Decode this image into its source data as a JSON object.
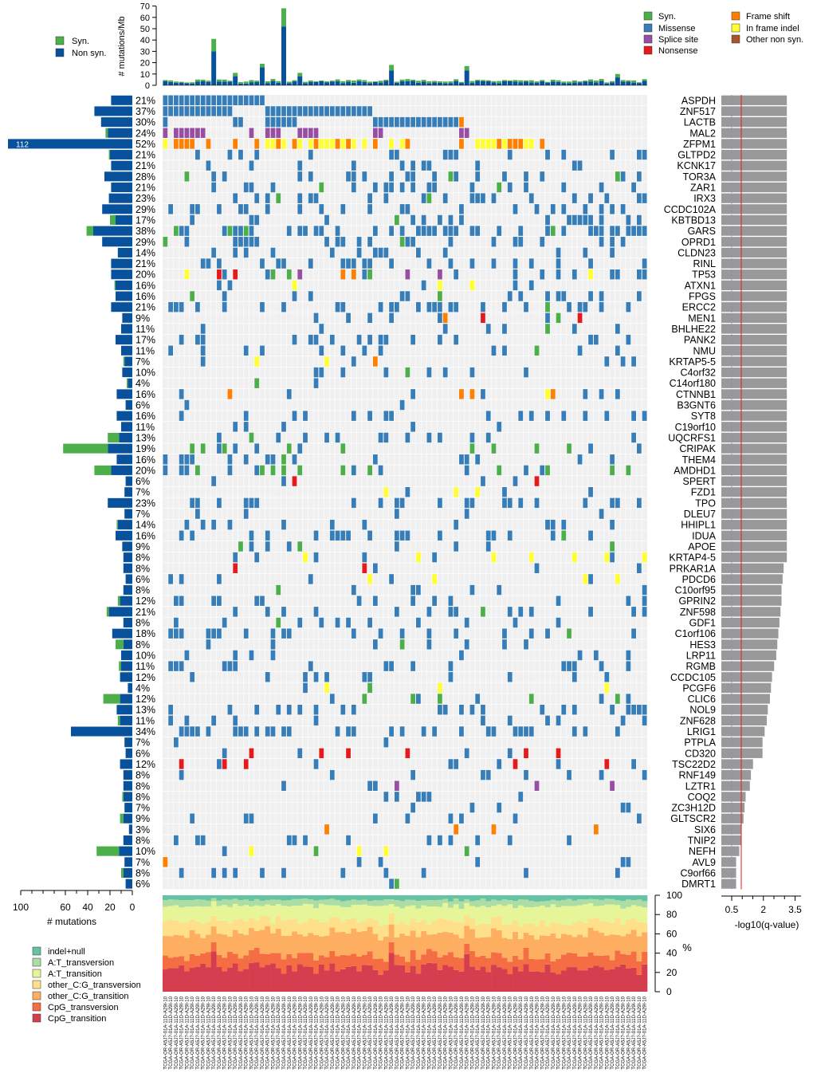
{
  "chart_data": {
    "type": "heatmap",
    "title": "",
    "top_bar": {
      "ylabel": "# mutations/Mb",
      "yticks": [
        0,
        10,
        20,
        30,
        40,
        50,
        60,
        70
      ],
      "ylim": [
        0,
        70
      ],
      "legend": [
        "Syn.",
        "Non syn."
      ],
      "peaks": [
        {
          "sample": 9,
          "nonsyn": 30,
          "syn": 11
        },
        {
          "sample": 13,
          "nonsyn": 8,
          "syn": 3
        },
        {
          "sample": 18,
          "nonsyn": 16,
          "syn": 3
        },
        {
          "sample": 22,
          "nonsyn": 52,
          "syn": 16
        },
        {
          "sample": 25,
          "nonsyn": 8,
          "syn": 3
        },
        {
          "sample": 42,
          "nonsyn": 13,
          "syn": 5
        },
        {
          "sample": 56,
          "nonsyn": 13,
          "syn": 4
        },
        {
          "sample": 84,
          "nonsyn": 7,
          "syn": 3
        }
      ]
    },
    "mutation_legend": [
      "Syn.",
      "Missense",
      "Splice site",
      "Nonsense",
      "Frame shift",
      "In frame indel",
      "Other non syn."
    ],
    "samples_count": 90,
    "genes": [
      "ASPDH",
      "ZNF517",
      "LACTB",
      "MAL2",
      "ZFPM1",
      "GLTPD2",
      "KCNK17",
      "TOR3A",
      "ZAR1",
      "IRX3",
      "CCDC102A",
      "KBTBD13",
      "GARS",
      "OPRD1",
      "CLDN23",
      "RINL",
      "TP53",
      "ATXN1",
      "FPGS",
      "ERCC2",
      "MEN1",
      "BHLHE22",
      "PANK2",
      "NMU",
      "KRTAP5-5",
      "C4orf32",
      "C14orf180",
      "CTNNB1",
      "B3GNT6",
      "SYT8",
      "C19orf10",
      "UQCRFS1",
      "CRIPAK",
      "THEM4",
      "AMDHD1",
      "SPERT",
      "FZD1",
      "TPO",
      "DLEU7",
      "HHIPL1",
      "IDUA",
      "APOE",
      "KRTAP4-5",
      "PRKAR1A",
      "PDCD6",
      "C10orf95",
      "GPRIN2",
      "ZNF598",
      "GDF1",
      "C1orf106",
      "HES3",
      "LRP11",
      "RGMB",
      "CCDC105",
      "PCGF6",
      "CLIC6",
      "NOL9",
      "ZNF628",
      "LRIG1",
      "PTPLA",
      "CD320",
      "TSC22D2",
      "RNF149",
      "LZTR1",
      "COQ2",
      "ZC3H12D",
      "GLTSCR2",
      "SIX6",
      "TNIP2",
      "NEFH",
      "AVL9",
      "C9orf66",
      "DMRT1"
    ],
    "percents": [
      "21%",
      "37%",
      "30%",
      "24%",
      "52%",
      "21%",
      "21%",
      "28%",
      "21%",
      "23%",
      "29%",
      "17%",
      "38%",
      "29%",
      "14%",
      "21%",
      "20%",
      "16%",
      "16%",
      "21%",
      "9%",
      "11%",
      "17%",
      "11%",
      "7%",
      "10%",
      "4%",
      "16%",
      "6%",
      "16%",
      "11%",
      "13%",
      "19%",
      "16%",
      "20%",
      "6%",
      "7%",
      "23%",
      "7%",
      "14%",
      "16%",
      "9%",
      "8%",
      "8%",
      "6%",
      "8%",
      "12%",
      "21%",
      "8%",
      "18%",
      "8%",
      "10%",
      "11%",
      "12%",
      "4%",
      "12%",
      "13%",
      "11%",
      "34%",
      "7%",
      "6%",
      "12%",
      "8%",
      "8%",
      "8%",
      "7%",
      "9%",
      "3%",
      "8%",
      "10%",
      "7%",
      "8%",
      "6%"
    ],
    "left_counts": {
      "nonsyn": [
        19,
        34,
        28,
        22,
        112,
        20,
        19,
        25,
        19,
        21,
        27,
        15,
        35,
        27,
        13,
        19,
        19,
        15,
        15,
        19,
        9,
        10,
        15,
        10,
        7,
        9,
        4,
        14,
        6,
        14,
        10,
        12,
        22,
        14,
        19,
        6,
        7,
        22,
        7,
        13,
        15,
        9,
        8,
        8,
        6,
        8,
        11,
        21,
        8,
        18,
        8,
        10,
        10,
        11,
        4,
        11,
        14,
        11,
        55,
        7,
        6,
        11,
        8,
        8,
        8,
        7,
        8,
        3,
        8,
        12,
        7,
        8,
        6
      ],
      "syn": [
        0,
        0,
        0,
        2,
        0,
        1,
        0,
        0,
        0,
        0,
        0,
        5,
        6,
        0,
        0,
        0,
        0,
        1,
        0,
        0,
        0,
        0,
        0,
        0,
        1,
        0,
        1,
        0,
        0,
        0,
        0,
        10,
        40,
        0,
        15,
        0,
        0,
        0,
        0,
        1,
        0,
        0,
        0,
        0,
        0,
        0,
        2,
        2,
        0,
        0,
        7,
        0,
        2,
        0,
        0,
        15,
        0,
        2,
        0,
        0,
        0,
        0,
        0,
        0,
        1,
        0,
        3,
        0,
        0,
        20,
        0,
        2,
        0
      ],
      "xlabel": "# mutations",
      "xticks": [
        100,
        60,
        40,
        20,
        0
      ],
      "bar_label": "112"
    },
    "qvalue": {
      "xlabel": "-log10(q-value)",
      "xticks": [
        0.5,
        2.0,
        3.5
      ],
      "values": [
        3.1,
        3.1,
        3.1,
        3.1,
        3.1,
        3.1,
        3.1,
        3.1,
        3.1,
        3.1,
        3.1,
        3.1,
        3.1,
        3.1,
        3.1,
        3.1,
        3.1,
        3.1,
        3.1,
        3.1,
        3.1,
        3.1,
        3.1,
        3.1,
        3.1,
        3.1,
        3.1,
        3.1,
        3.1,
        3.1,
        3.1,
        3.1,
        3.1,
        3.1,
        3.1,
        3.1,
        3.1,
        3.1,
        3.1,
        3.1,
        3.1,
        3.1,
        3.1,
        2.95,
        2.9,
        2.85,
        2.85,
        2.8,
        2.75,
        2.7,
        2.65,
        2.6,
        2.5,
        2.4,
        2.35,
        2.3,
        2.2,
        2.15,
        2.05,
        1.95,
        1.95,
        1.5,
        1.4,
        1.35,
        1.15,
        1.1,
        1.05,
        0.95,
        0.95,
        0.85,
        0.7,
        0.7,
        0.7
      ]
    },
    "spectrum": {
      "ylabel": "%",
      "yticks": [
        0,
        20,
        40,
        60,
        80,
        100
      ],
      "categories": [
        "indel+null",
        "A:T_transversion",
        "A:T_transition",
        "other_C:G_transversion",
        "other_C:G_transition",
        "CpG_transversion",
        "CpG_transition"
      ]
    },
    "sample_label": "TCGA-OR-A5J?-01A-11D-A29I-10"
  },
  "colors": {
    "syn": "#4daf4a",
    "missense": "#377eb8",
    "splice": "#984ea3",
    "nonsense": "#e41a1c",
    "frameshift": "#ff7f00",
    "inframe": "#ffff33",
    "other": "#a65628",
    "nonsyn_bar": "#08519c",
    "cell_bg": "#f0f0f0",
    "qbar": "#999999",
    "spectrum": [
      "#66c2a5",
      "#abdda4",
      "#e6f598",
      "#fee08b",
      "#fdae61",
      "#f46d43",
      "#d53e4f"
    ]
  }
}
